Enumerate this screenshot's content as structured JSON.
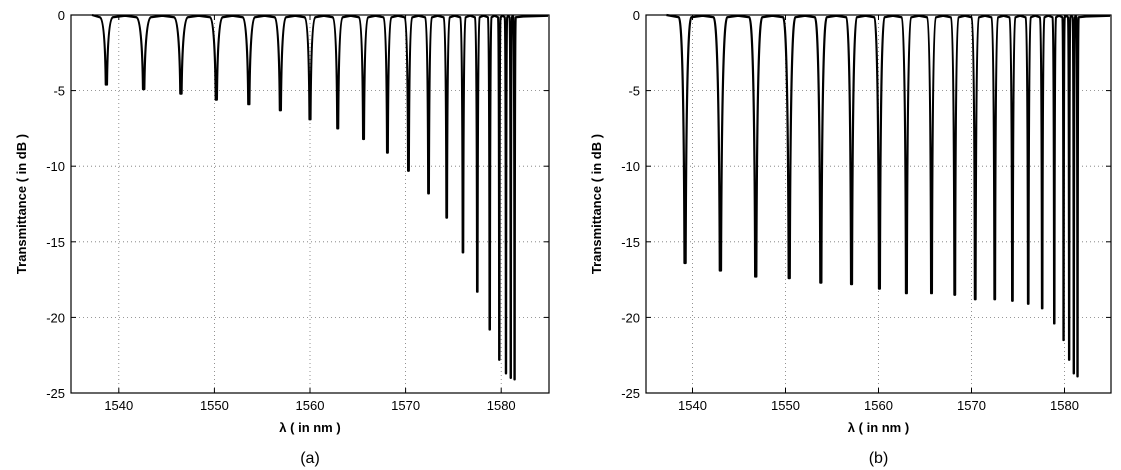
{
  "chart_data": [
    {
      "type": "line",
      "caption": "(a)",
      "xlabel": "λ ( in nm )",
      "ylabel": "Transmittance ( in dB )",
      "xlim": [
        1535,
        1585
      ],
      "ylim": [
        -25,
        0
      ],
      "xticks": [
        1540,
        1550,
        1560,
        1570,
        1580
      ],
      "yticks": [
        0,
        -5,
        -10,
        -15,
        -20,
        -25
      ],
      "grid": true,
      "series": [
        {
          "dips": [
            {
              "x": 1538.7,
              "y": -4.6
            },
            {
              "x": 1542.6,
              "y": -4.9
            },
            {
              "x": 1546.5,
              "y": -5.2
            },
            {
              "x": 1550.2,
              "y": -5.6
            },
            {
              "x": 1553.6,
              "y": -5.9
            },
            {
              "x": 1556.9,
              "y": -6.3
            },
            {
              "x": 1560.0,
              "y": -6.9
            },
            {
              "x": 1562.9,
              "y": -7.5
            },
            {
              "x": 1565.6,
              "y": -8.2
            },
            {
              "x": 1568.1,
              "y": -9.1
            },
            {
              "x": 1570.3,
              "y": -10.3
            },
            {
              "x": 1572.4,
              "y": -11.8
            },
            {
              "x": 1574.3,
              "y": -13.4
            },
            {
              "x": 1576.0,
              "y": -15.7
            },
            {
              "x": 1577.5,
              "y": -18.3
            },
            {
              "x": 1578.8,
              "y": -20.8
            },
            {
              "x": 1579.8,
              "y": -22.8
            },
            {
              "x": 1580.5,
              "y": -23.7
            },
            {
              "x": 1581.0,
              "y": -24.0
            },
            {
              "x": 1581.4,
              "y": -24.1
            }
          ]
        }
      ]
    },
    {
      "type": "line",
      "caption": "(b)",
      "xlabel": "λ ( in nm )",
      "ylabel": "Transmittance ( in dB )",
      "xlim": [
        1535,
        1585
      ],
      "ylim": [
        -25,
        0
      ],
      "xticks": [
        1540,
        1550,
        1560,
        1570,
        1580
      ],
      "yticks": [
        0,
        -5,
        -10,
        -15,
        -20,
        -25
      ],
      "grid": true,
      "series": [
        {
          "dips": [
            {
              "x": 1539.2,
              "y": -16.4
            },
            {
              "x": 1543.0,
              "y": -16.9
            },
            {
              "x": 1546.8,
              "y": -17.3
            },
            {
              "x": 1550.4,
              "y": -17.4
            },
            {
              "x": 1553.8,
              "y": -17.7
            },
            {
              "x": 1557.1,
              "y": -17.8
            },
            {
              "x": 1560.1,
              "y": -18.1
            },
            {
              "x": 1563.0,
              "y": -18.4
            },
            {
              "x": 1565.7,
              "y": -18.4
            },
            {
              "x": 1568.2,
              "y": -18.5
            },
            {
              "x": 1570.4,
              "y": -18.8
            },
            {
              "x": 1572.5,
              "y": -18.8
            },
            {
              "x": 1574.4,
              "y": -18.9
            },
            {
              "x": 1576.1,
              "y": -19.1
            },
            {
              "x": 1577.6,
              "y": -19.4
            },
            {
              "x": 1578.9,
              "y": -20.4
            },
            {
              "x": 1579.9,
              "y": -21.5
            },
            {
              "x": 1580.5,
              "y": -22.8
            },
            {
              "x": 1581.0,
              "y": -23.7
            },
            {
              "x": 1581.4,
              "y": -23.9
            }
          ]
        }
      ]
    }
  ]
}
